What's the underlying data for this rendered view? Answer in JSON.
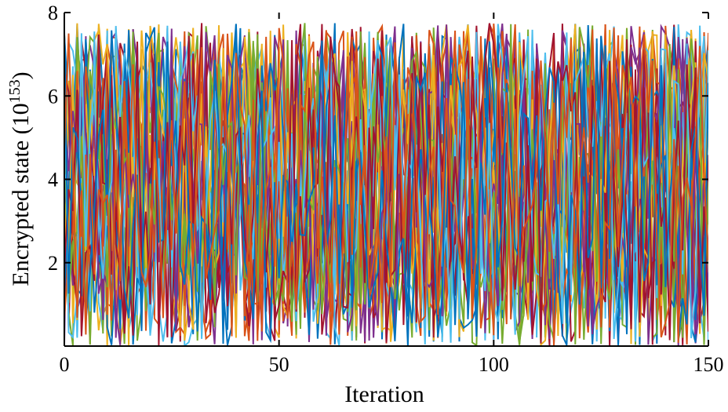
{
  "chart_data": {
    "type": "line",
    "xlabel": "Iteration",
    "ylabel_text": "Encrypted state (10",
    "ylabel_exponent": "153",
    "ylabel_suffix": ")",
    "xlim": [
      0,
      150
    ],
    "ylim": [
      0,
      8
    ],
    "x_ticks": [
      "0",
      "50",
      "100",
      "150"
    ],
    "y_ticks": [
      "2",
      "4",
      "6",
      "8"
    ],
    "y_tick_values": [
      2,
      4,
      6,
      8
    ],
    "x_tick_values": [
      0,
      50,
      100,
      150
    ],
    "value_range": [
      0,
      7.75
    ],
    "series_count": 30,
    "x": [
      0,
      150
    ],
    "series_colors": [
      "#0072BD",
      "#D95319",
      "#EDB120",
      "#7E2F8E",
      "#77AC30",
      "#4DBEEE",
      "#A2142F"
    ],
    "grid": false,
    "legend": "none",
    "note_values": "Dense overlay of many pseudo-random series oscillating between about 0 and 7.75 over 150 iterations."
  }
}
